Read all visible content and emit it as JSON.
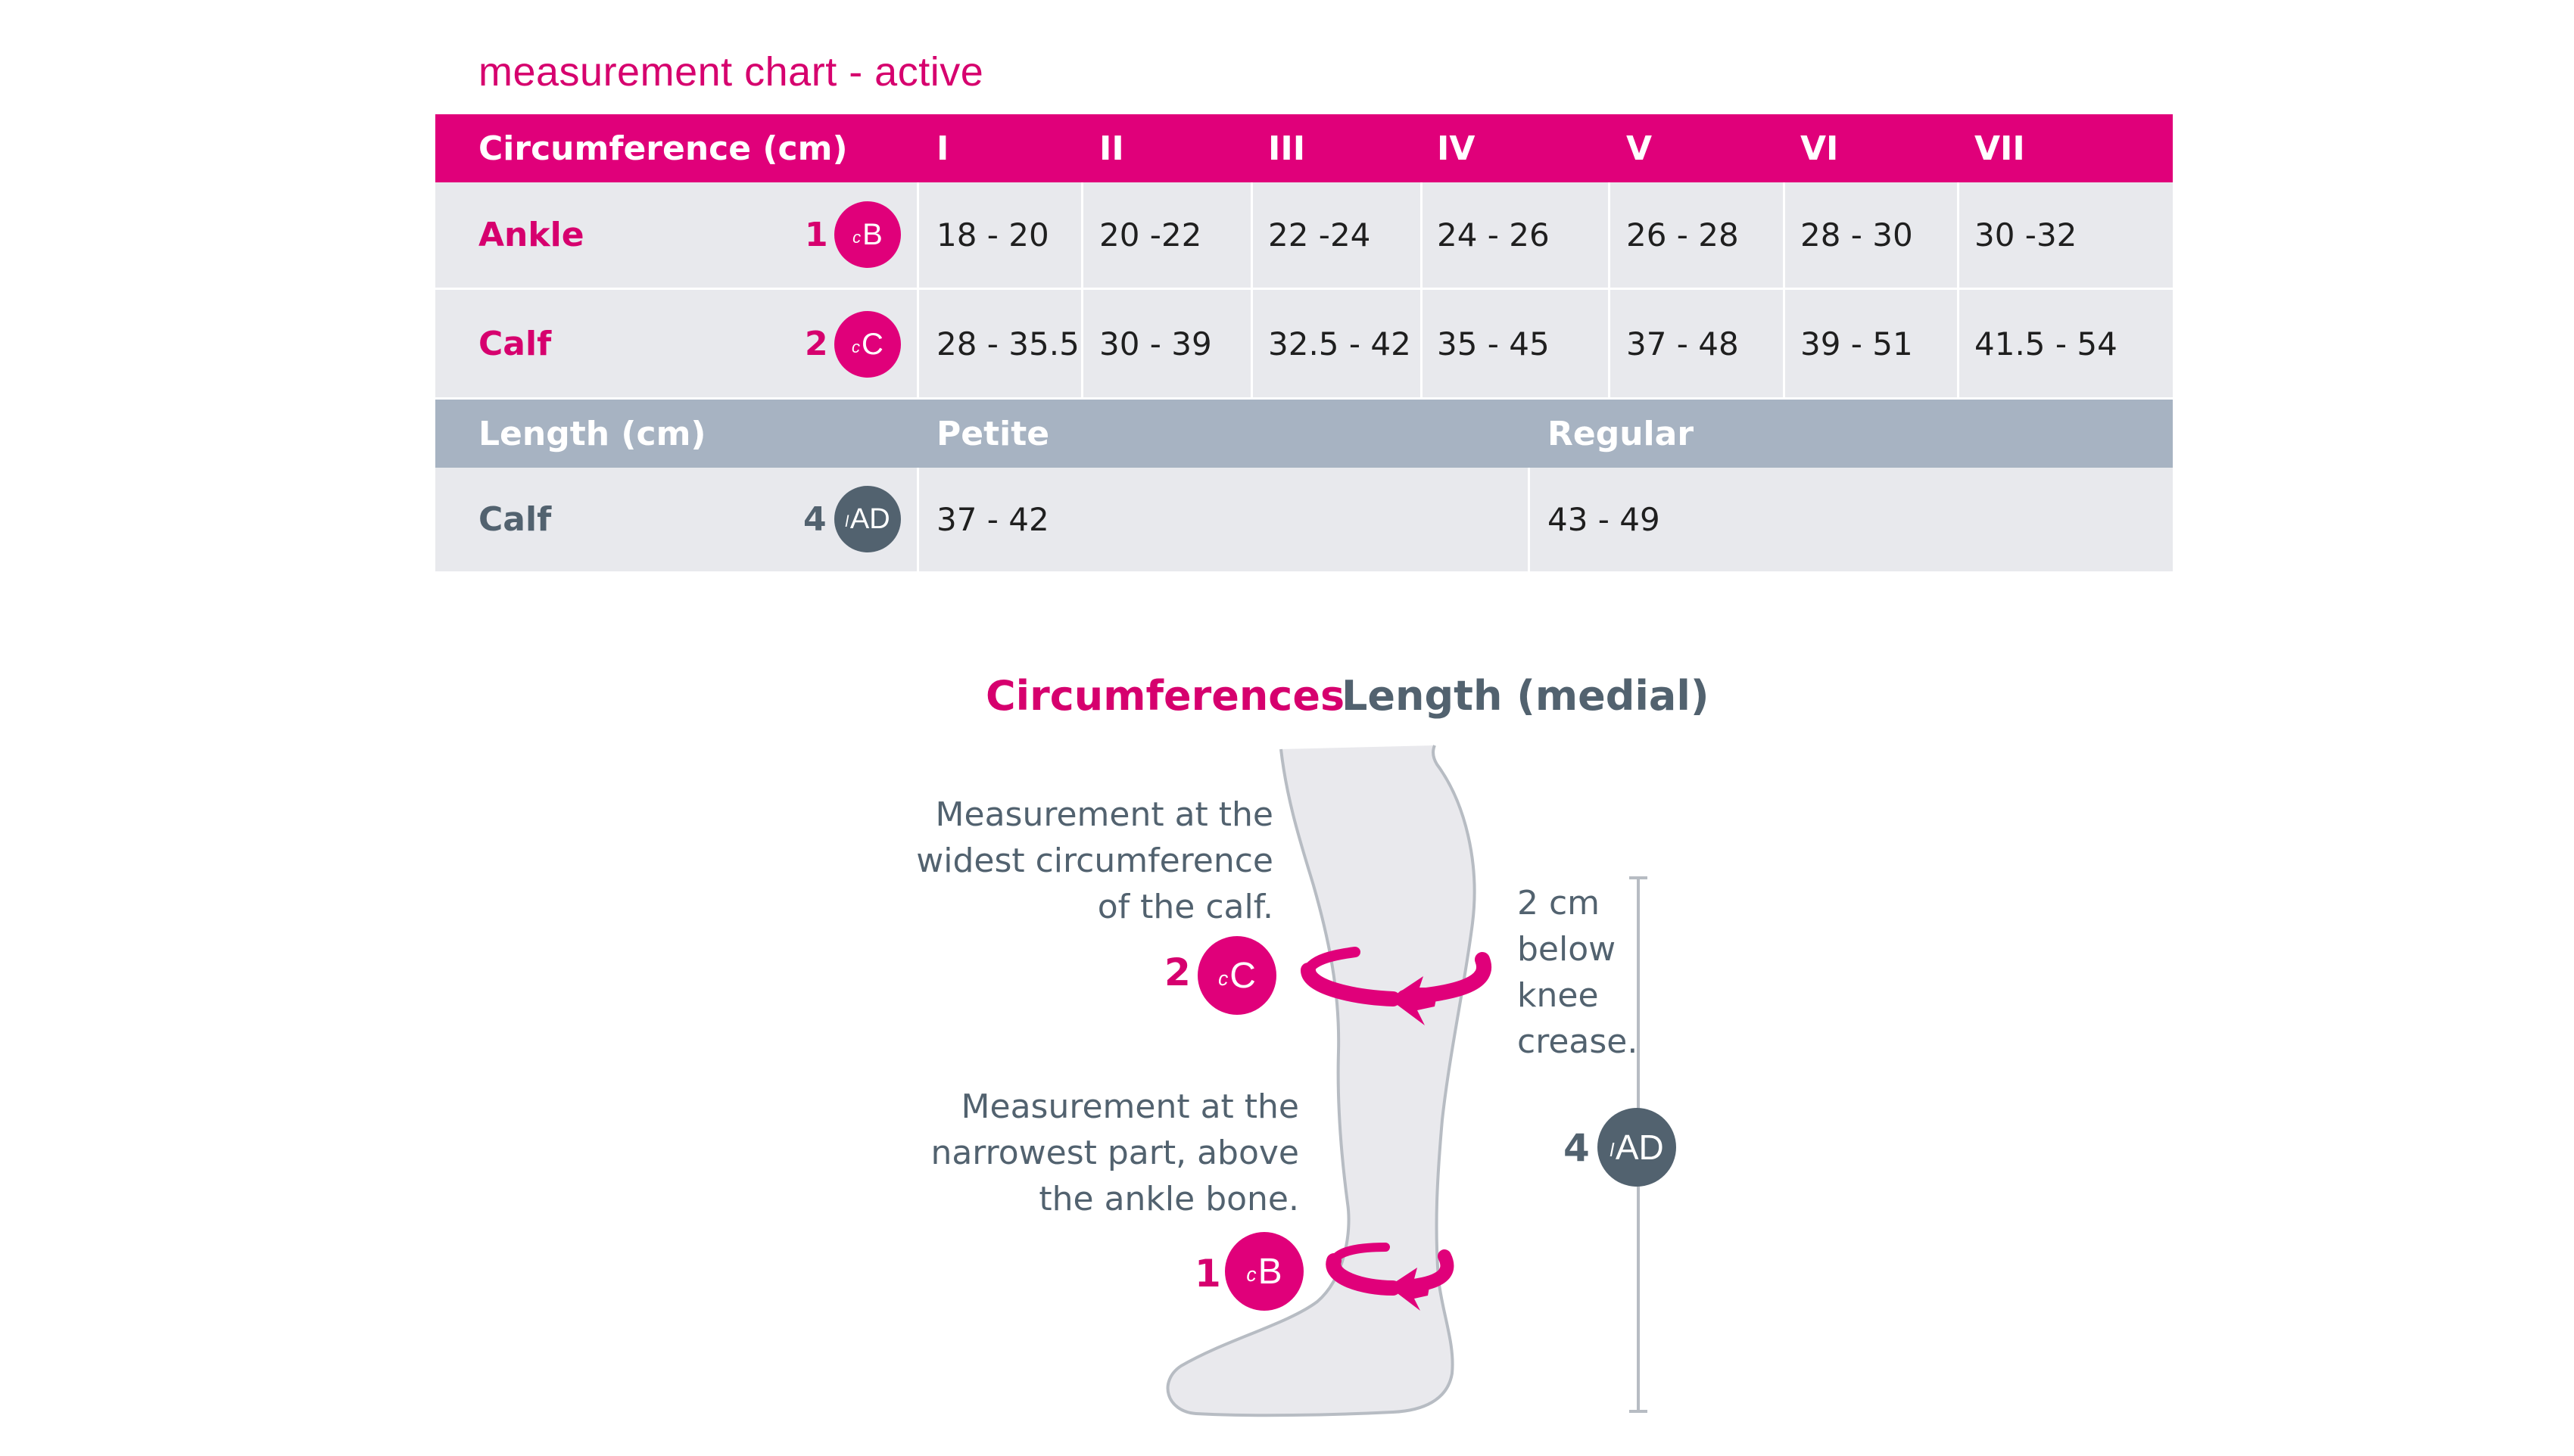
{
  "title": "measurement chart - active",
  "table": {
    "circumference_header": "Circumference (cm)",
    "sizes": [
      "I",
      "II",
      "III",
      "IV",
      "V",
      "VI",
      "VII"
    ],
    "rows": [
      {
        "label": "Ankle",
        "number": "1",
        "badge": {
          "prefix": "c",
          "letter": "B"
        },
        "values": [
          "18 - 20",
          "20 -22",
          "22 -24",
          "24 - 26",
          "26 - 28",
          "28 - 30",
          "30 -32"
        ]
      },
      {
        "label": "Calf",
        "number": "2",
        "badge": {
          "prefix": "c",
          "letter": "C"
        },
        "values": [
          "28 - 35.5",
          "30 - 39",
          "32.5 - 42",
          "35 - 45",
          "37 - 48",
          "39 - 51",
          "41.5 - 54"
        ]
      }
    ],
    "length_header": "Length (cm)",
    "length_cols": [
      "Petite",
      "Regular"
    ],
    "length_row": {
      "label": "Calf",
      "number": "4",
      "badge": {
        "prefix": "l",
        "letter": "AD"
      },
      "values": [
        "37 - 42",
        "43 - 49"
      ]
    }
  },
  "diagram": {
    "heading_circumferences": "Circumferences",
    "heading_length": "Length (medial)",
    "calf_note": [
      "Measurement at the",
      "widest circumference",
      "of the calf."
    ],
    "ankle_note": [
      "Measurement at the",
      "narrowest part, above",
      "the ankle bone."
    ],
    "length_note": [
      "2 cm",
      "below",
      "knee",
      "crease."
    ],
    "calf_marker": {
      "number": "2",
      "prefix": "c",
      "letter": "C"
    },
    "ankle_marker": {
      "number": "1",
      "prefix": "c",
      "letter": "B"
    },
    "length_marker": {
      "number": "4",
      "prefix": "l",
      "letter": "AD"
    }
  },
  "colors": {
    "magenta": "#e0007a",
    "slate": "#52626f",
    "grey_header": "#a7b3c2",
    "row_bg": "#e8e9ed",
    "leg_fill": "#e8e8ec",
    "leg_stroke": "#b4b9c0"
  }
}
